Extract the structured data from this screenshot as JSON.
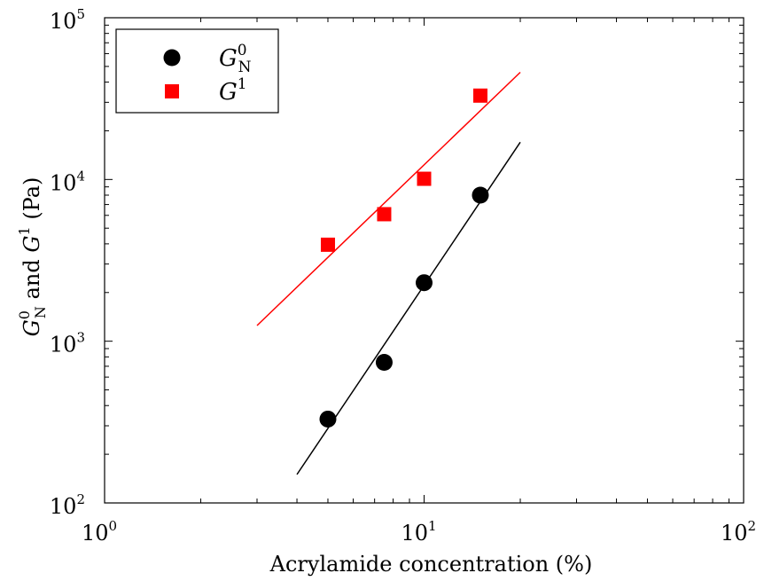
{
  "chart_data": {
    "type": "scatter",
    "title": "",
    "xlabel": "Acrylamide concentration (%)",
    "ylabel": {
      "parts": [
        {
          "text": "G",
          "style": "italic"
        },
        {
          "text": "0",
          "shift": "sup"
        },
        {
          "text": "N",
          "shift": "sub"
        },
        {
          "text": " and "
        },
        {
          "text": "G",
          "style": "italic"
        },
        {
          "text": "1",
          "shift": "sup"
        },
        {
          "text": " (Pa)"
        }
      ]
    },
    "x_scale": "log",
    "y_scale": "log",
    "xlim": [
      1,
      100
    ],
    "ylim": [
      100,
      100000
    ],
    "x_ticks": [
      {
        "value": 1,
        "base": "10",
        "exp": "0"
      },
      {
        "value": 10,
        "base": "10",
        "exp": "1"
      },
      {
        "value": 100,
        "base": "10",
        "exp": "2"
      }
    ],
    "y_ticks": [
      {
        "value": 100,
        "base": "10",
        "exp": "2"
      },
      {
        "value": 1000,
        "base": "10",
        "exp": "3"
      },
      {
        "value": 10000,
        "base": "10",
        "exp": "4"
      },
      {
        "value": 100000,
        "base": "10",
        "exp": "5"
      }
    ],
    "grid": false,
    "legend": {
      "position": "top-left"
    },
    "series": [
      {
        "name": "G_N^0",
        "legend_main": "G",
        "legend_sup": "0",
        "legend_sub": "N",
        "marker": "circle",
        "color": "#000000",
        "points": [
          {
            "x": 5,
            "y": 330
          },
          {
            "x": 7.5,
            "y": 740
          },
          {
            "x": 10,
            "y": 2300
          },
          {
            "x": 15,
            "y": 8000
          }
        ],
        "fit_line": {
          "x": [
            4,
            20
          ],
          "y": [
            150,
            17000
          ]
        }
      },
      {
        "name": "G^1",
        "legend_main": "G",
        "legend_sup": "1",
        "legend_sub": "",
        "marker": "square",
        "color": "#ff0000",
        "points": [
          {
            "x": 5,
            "y": 3950
          },
          {
            "x": 7.5,
            "y": 6100
          },
          {
            "x": 10,
            "y": 10100
          },
          {
            "x": 15,
            "y": 33000
          }
        ],
        "fit_line": {
          "x": [
            3,
            20
          ],
          "y": [
            1250,
            46000
          ]
        }
      }
    ]
  }
}
